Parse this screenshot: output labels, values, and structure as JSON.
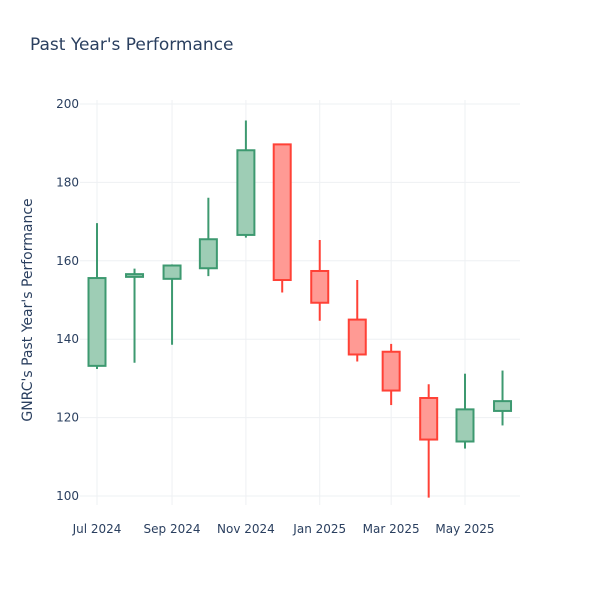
{
  "chart_data": {
    "type": "candlestick",
    "title": "Past Year's Performance",
    "xlabel": "",
    "ylabel": "GNRC's Past Year's Performance",
    "ylim": [
      95,
      202
    ],
    "yticks": [
      100,
      120,
      140,
      160,
      180,
      200
    ],
    "xticks": [
      "Jul 2024",
      "Sep 2024",
      "Nov 2024",
      "Jan 2025",
      "Mar 2025",
      "May 2025"
    ],
    "grid": true,
    "colors": {
      "increasing_line": "#3d9970",
      "increasing_fill": "#9ecdb5",
      "decreasing_line": "#ff4136",
      "decreasing_fill": "#ff9a94"
    },
    "candles": [
      {
        "date": "2024-07",
        "open": 133.2,
        "high": 169.6,
        "low": 132.4,
        "close": 155.6
      },
      {
        "date": "2024-08",
        "open": 155.9,
        "high": 158.0,
        "low": 134.0,
        "close": 156.6
      },
      {
        "date": "2024-09",
        "open": 155.4,
        "high": 159.1,
        "low": 138.6,
        "close": 158.8
      },
      {
        "date": "2024-10",
        "open": 158.1,
        "high": 176.1,
        "low": 156.1,
        "close": 165.5
      },
      {
        "date": "2024-11",
        "open": 166.6,
        "high": 195.8,
        "low": 165.9,
        "close": 188.2
      },
      {
        "date": "2024-12",
        "open": 189.7,
        "high": 189.7,
        "low": 151.9,
        "close": 155.1
      },
      {
        "date": "2025-01",
        "open": 157.4,
        "high": 165.3,
        "low": 144.7,
        "close": 149.3
      },
      {
        "date": "2025-02",
        "open": 145.0,
        "high": 155.1,
        "low": 134.3,
        "close": 136.1
      },
      {
        "date": "2025-03",
        "open": 136.8,
        "high": 138.8,
        "low": 123.2,
        "close": 126.9
      },
      {
        "date": "2025-04",
        "open": 125.0,
        "high": 128.5,
        "low": 99.6,
        "close": 114.4
      },
      {
        "date": "2025-05",
        "open": 113.9,
        "high": 131.2,
        "low": 112.1,
        "close": 122.1
      },
      {
        "date": "2025-06",
        "open": 121.7,
        "high": 132.0,
        "low": 118.0,
        "close": 124.2
      }
    ]
  }
}
